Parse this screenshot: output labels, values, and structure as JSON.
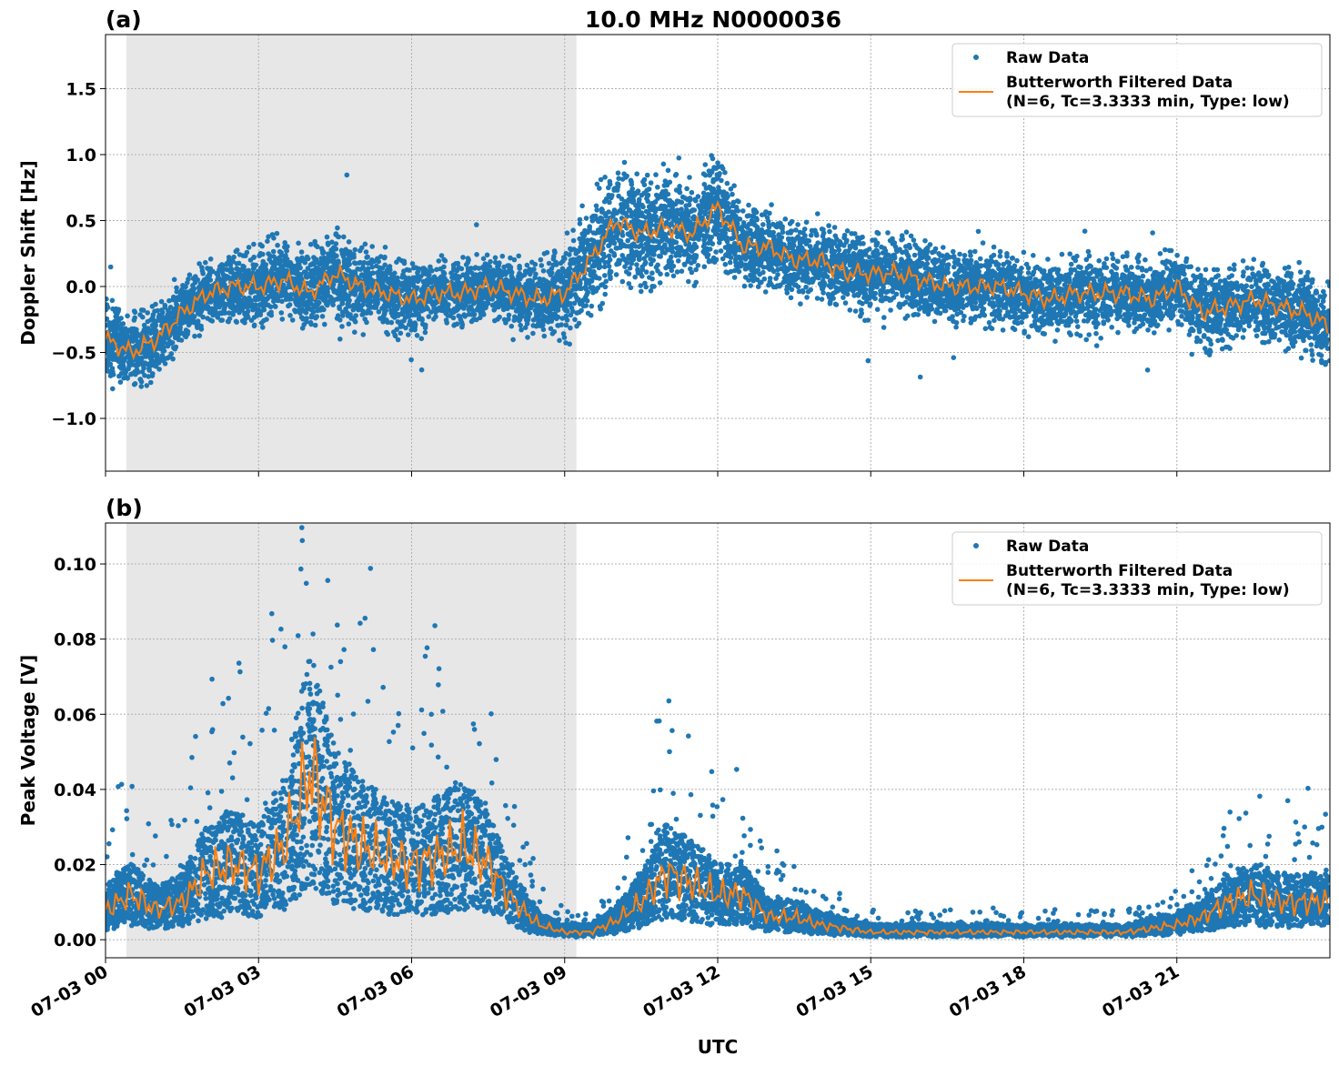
{
  "title": "10.0 MHz N0000036",
  "colors": {
    "raw": "#1f77b4",
    "filtered": "#ff7f0e",
    "shade": "#e7e7e7"
  },
  "chart_data": [
    {
      "type": "scatter",
      "panel_label": "(a)",
      "ylabel": "Doppler Shift [Hz]",
      "xlabel": "",
      "ylim": [
        -1.4,
        1.91
      ],
      "yticks": [
        -1.0,
        -0.5,
        0.0,
        0.5,
        1.0,
        1.5
      ],
      "ytick_labels": [
        "−1.0",
        "−0.5",
        "0.0",
        "0.5",
        "1.0",
        "1.5"
      ],
      "grid": true,
      "legend": {
        "placement": "top-right",
        "entries": [
          "Raw Data",
          "Butterworth Filtered Data",
          "(N=6, Tc=3.3333 min, Type: low)"
        ]
      },
      "shaded_interval_hours": [
        0.41,
        9.23
      ],
      "x_hours": [
        0,
        0.5,
        1,
        1.5,
        2,
        2.5,
        3,
        3.5,
        4,
        4.5,
        5,
        5.5,
        6,
        6.5,
        7,
        7.5,
        8,
        8.5,
        9,
        9.5,
        10,
        10.5,
        11,
        11.5,
        12,
        12.5,
        13,
        13.5,
        14,
        14.5,
        15,
        15.5,
        16,
        16.5,
        17,
        17.5,
        18,
        18.5,
        19,
        19.5,
        20,
        20.5,
        21,
        21.5,
        22,
        22.5,
        23,
        23.5,
        24
      ],
      "series": [
        {
          "name": "Butterworth Filtered Data",
          "values": [
            -0.4,
            -0.5,
            -0.4,
            -0.2,
            -0.05,
            0.0,
            0.0,
            0.05,
            -0.05,
            0.1,
            0.0,
            -0.05,
            -0.1,
            -0.05,
            -0.05,
            0.0,
            -0.05,
            -0.1,
            -0.05,
            0.2,
            0.5,
            0.4,
            0.45,
            0.4,
            0.6,
            0.3,
            0.3,
            0.2,
            0.2,
            0.1,
            0.1,
            0.1,
            0.05,
            0.0,
            0.0,
            0.0,
            -0.05,
            -0.1,
            -0.05,
            -0.05,
            -0.05,
            -0.1,
            0.0,
            -0.2,
            -0.15,
            -0.1,
            -0.15,
            -0.2,
            -0.3
          ]
        },
        {
          "name": "Raw Data",
          "spread": [
            0.3,
            0.3,
            0.3,
            0.25,
            0.25,
            0.25,
            0.3,
            0.3,
            0.3,
            0.35,
            0.3,
            0.3,
            0.3,
            0.25,
            0.25,
            0.25,
            0.25,
            0.3,
            0.35,
            0.45,
            0.5,
            0.45,
            0.45,
            0.4,
            0.45,
            0.3,
            0.3,
            0.3,
            0.3,
            0.3,
            0.3,
            0.3,
            0.3,
            0.3,
            0.3,
            0.3,
            0.3,
            0.3,
            0.3,
            0.3,
            0.3,
            0.3,
            0.3,
            0.3,
            0.3,
            0.3,
            0.3,
            0.3,
            0.3
          ]
        }
      ]
    },
    {
      "type": "scatter",
      "panel_label": "(b)",
      "ylabel": "Peak Voltage [V]",
      "xlabel": "UTC",
      "ylim": [
        -0.0048,
        0.1109
      ],
      "yticks": [
        0.0,
        0.02,
        0.04,
        0.06,
        0.08,
        0.1
      ],
      "ytick_labels": [
        "0.00",
        "0.02",
        "0.04",
        "0.06",
        "0.08",
        "0.10"
      ],
      "xtick_hours": [
        0,
        3,
        6,
        9,
        12,
        15,
        18,
        21
      ],
      "xtick_labels": [
        "07-03 00",
        "07-03 03",
        "07-03 06",
        "07-03 09",
        "07-03 12",
        "07-03 15",
        "07-03 18",
        "07-03 21"
      ],
      "xlim_hours": [
        0,
        24
      ],
      "grid": true,
      "legend": {
        "placement": "top-right",
        "entries": [
          "Raw Data",
          "Butterworth Filtered Data",
          "(N=6, Tc=3.3333 min, Type: low)"
        ]
      },
      "shaded_interval_hours": [
        0.41,
        9.23
      ],
      "x_hours": [
        0,
        0.5,
        1,
        1.5,
        2,
        2.5,
        3,
        3.5,
        4,
        4.5,
        5,
        5.5,
        6,
        6.5,
        7,
        7.5,
        8,
        8.5,
        9,
        9.5,
        10,
        10.5,
        11,
        11.5,
        12,
        12.5,
        13,
        13.5,
        14,
        14.5,
        15,
        15.5,
        16,
        16.5,
        17,
        17.5,
        18,
        18.5,
        19,
        19.5,
        20,
        20.5,
        21,
        21.5,
        22,
        22.5,
        23,
        23.5,
        24
      ],
      "series": [
        {
          "name": "Butterworth Filtered Data",
          "values": [
            0.008,
            0.012,
            0.008,
            0.01,
            0.018,
            0.02,
            0.018,
            0.025,
            0.045,
            0.03,
            0.025,
            0.022,
            0.02,
            0.022,
            0.025,
            0.02,
            0.01,
            0.004,
            0.002,
            0.002,
            0.005,
            0.01,
            0.018,
            0.015,
            0.012,
            0.012,
            0.006,
            0.006,
            0.004,
            0.003,
            0.002,
            0.002,
            0.002,
            0.002,
            0.002,
            0.002,
            0.002,
            0.002,
            0.002,
            0.002,
            0.002,
            0.003,
            0.004,
            0.006,
            0.01,
            0.012,
            0.01,
            0.01,
            0.01
          ]
        }
      ]
    }
  ]
}
